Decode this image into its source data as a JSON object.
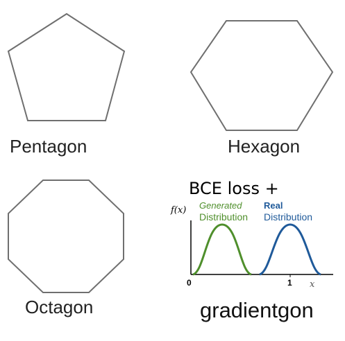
{
  "panels": {
    "pentagon": {
      "label": "Pentagon"
    },
    "hexagon": {
      "label": "Hexagon"
    },
    "octagon": {
      "label": "Octagon"
    },
    "gradientgon": {
      "label": "gradientgon",
      "heading": "BCE loss +",
      "fx_label": "f(x)",
      "generated_line1": "Generated",
      "generated_line2": "Distribution",
      "real_line1": "Real",
      "real_line2": "Distribution",
      "tick_zero": "0",
      "tick_one": "1",
      "x_label": "x"
    }
  },
  "colors": {
    "outline": "#6f6f6f",
    "generated": "#4f8f2c",
    "real": "#1f5a9a"
  }
}
